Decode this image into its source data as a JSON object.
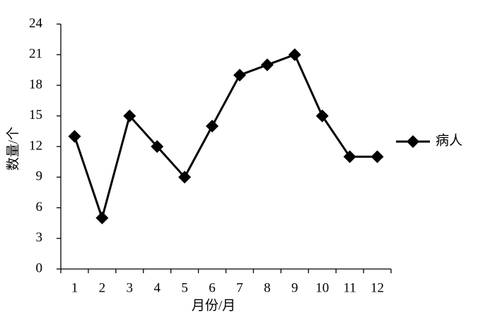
{
  "chart_data": {
    "type": "line",
    "x_label": "月份/月",
    "y_label": "数量/个",
    "categories": [
      "1",
      "2",
      "3",
      "4",
      "5",
      "6",
      "7",
      "8",
      "9",
      "10",
      "11",
      "12"
    ],
    "series": [
      {
        "name": "病人",
        "color": "#000000",
        "values": [
          13,
          5,
          15,
          12,
          9,
          14,
          19,
          20,
          21,
          15,
          11,
          11
        ]
      }
    ],
    "ylim": [
      0,
      24
    ],
    "yticks": [
      0,
      3,
      6,
      9,
      12,
      15,
      18,
      21,
      24
    ],
    "legend": "right"
  }
}
